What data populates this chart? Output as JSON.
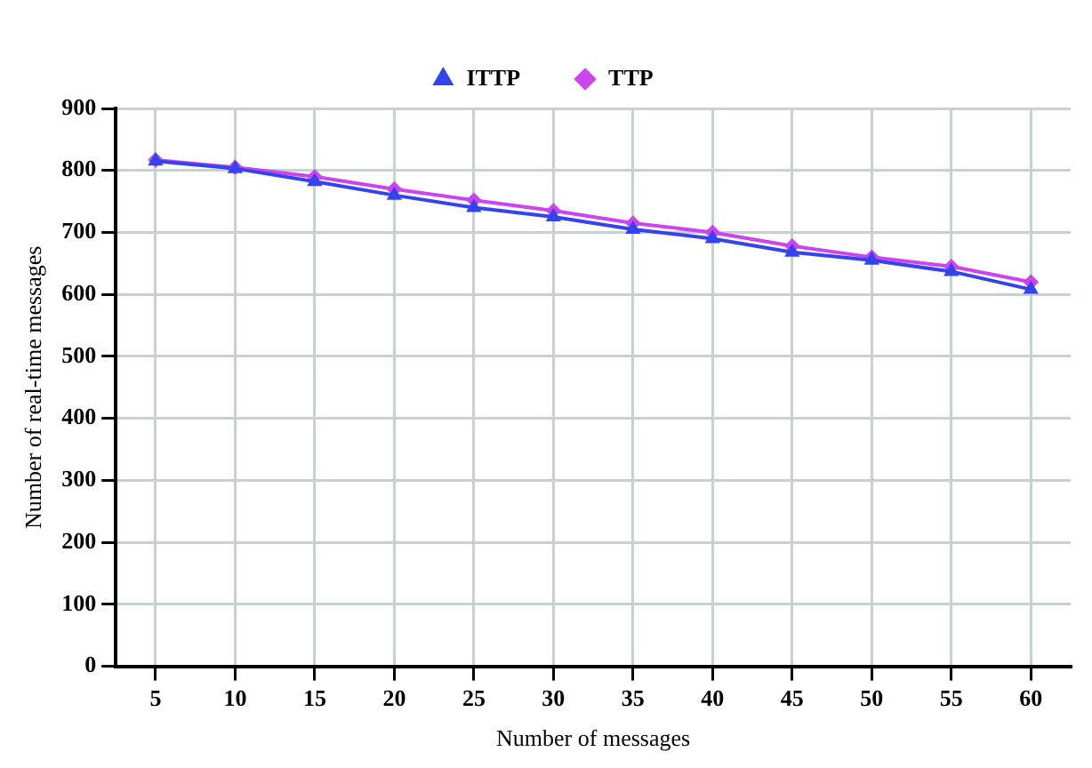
{
  "chart_data": {
    "type": "line",
    "xlabel": "Number of messages",
    "ylabel": "Number of real-time messages",
    "categories": [
      "5",
      "10",
      "15",
      "20",
      "25",
      "30",
      "35",
      "40",
      "45",
      "50",
      "55",
      "60"
    ],
    "series": [
      {
        "name": "TTP",
        "color": "#cc44ee",
        "marker": "diamond",
        "values": [
          817,
          805,
          790,
          770,
          752,
          735,
          715,
          700,
          678,
          660,
          645,
          620
        ]
      },
      {
        "name": "ITTP",
        "color": "#3344ee",
        "marker": "triangle",
        "values": [
          815,
          803,
          782,
          760,
          740,
          725,
          705,
          690,
          668,
          655,
          637,
          608
        ]
      }
    ],
    "ylim": [
      0,
      900
    ],
    "yticks": [
      0,
      100,
      200,
      300,
      400,
      500,
      600,
      700,
      800,
      900
    ],
    "grid": true,
    "legend": "top"
  }
}
